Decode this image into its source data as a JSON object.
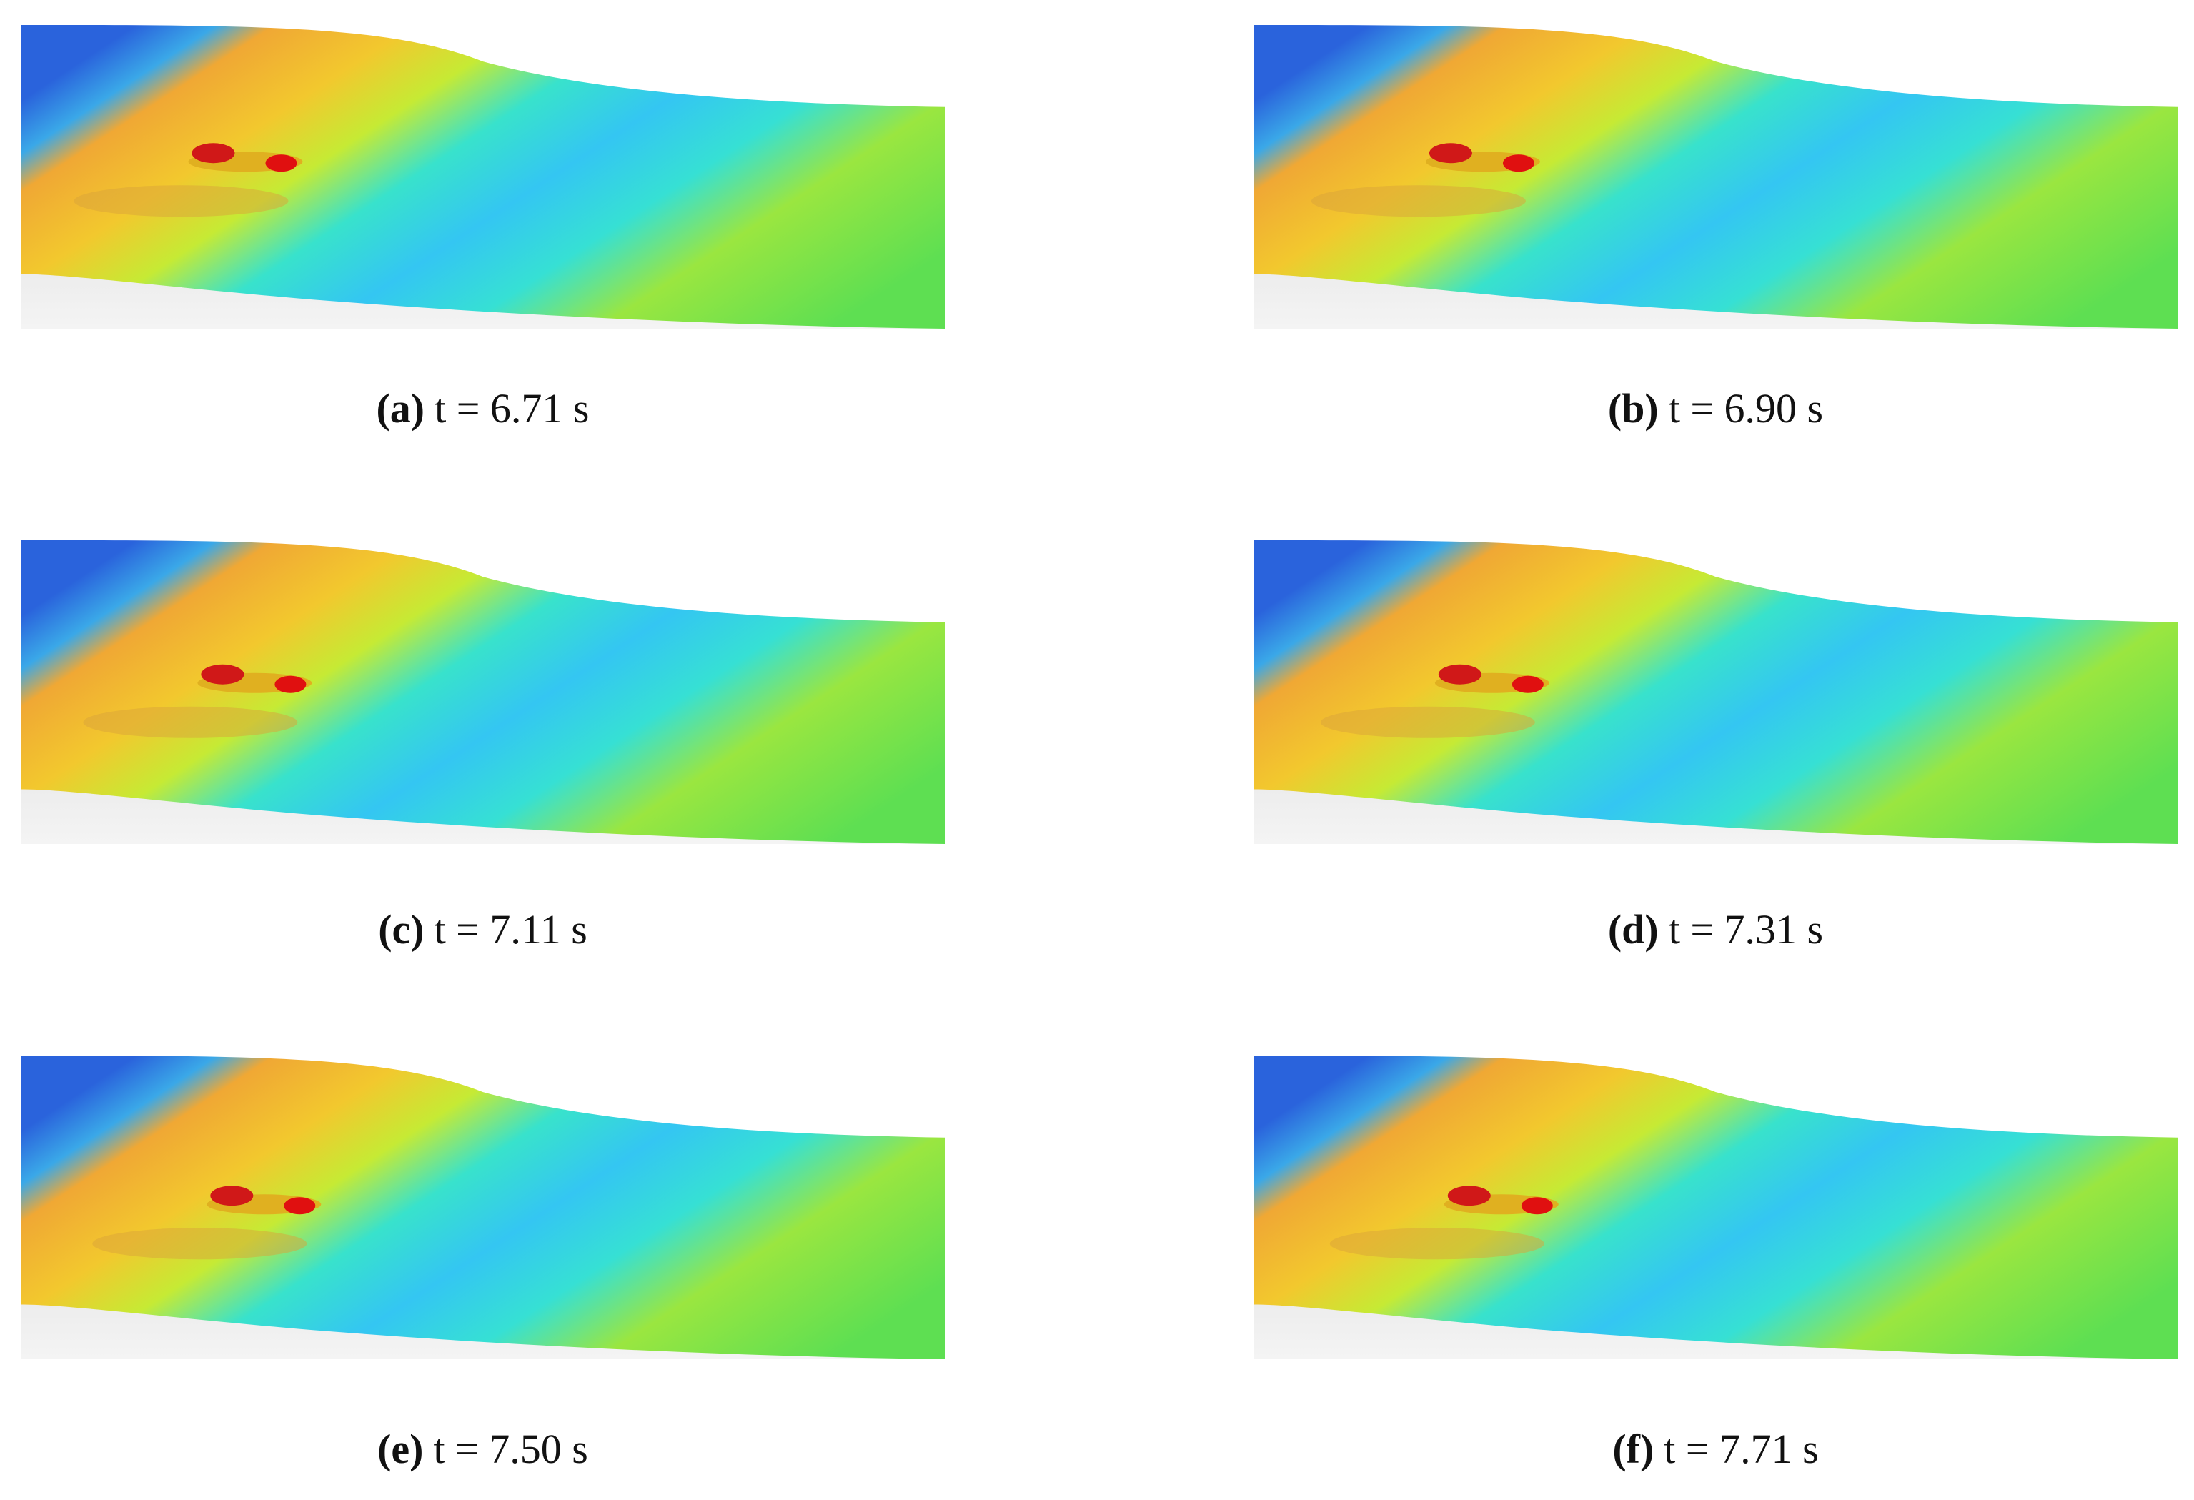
{
  "panels": [
    {
      "label": "(a)",
      "caption": "t = 6.71 s"
    },
    {
      "label": "(b)",
      "caption": "t = 6.90 s"
    },
    {
      "label": "(c)",
      "caption": "t = 7.11 s"
    },
    {
      "label": "(d)",
      "caption": "t = 7.31 s"
    },
    {
      "label": "(e)",
      "caption": "t = 7.50 s"
    },
    {
      "label": "(f)",
      "caption": "t = 7.71 s"
    }
  ]
}
